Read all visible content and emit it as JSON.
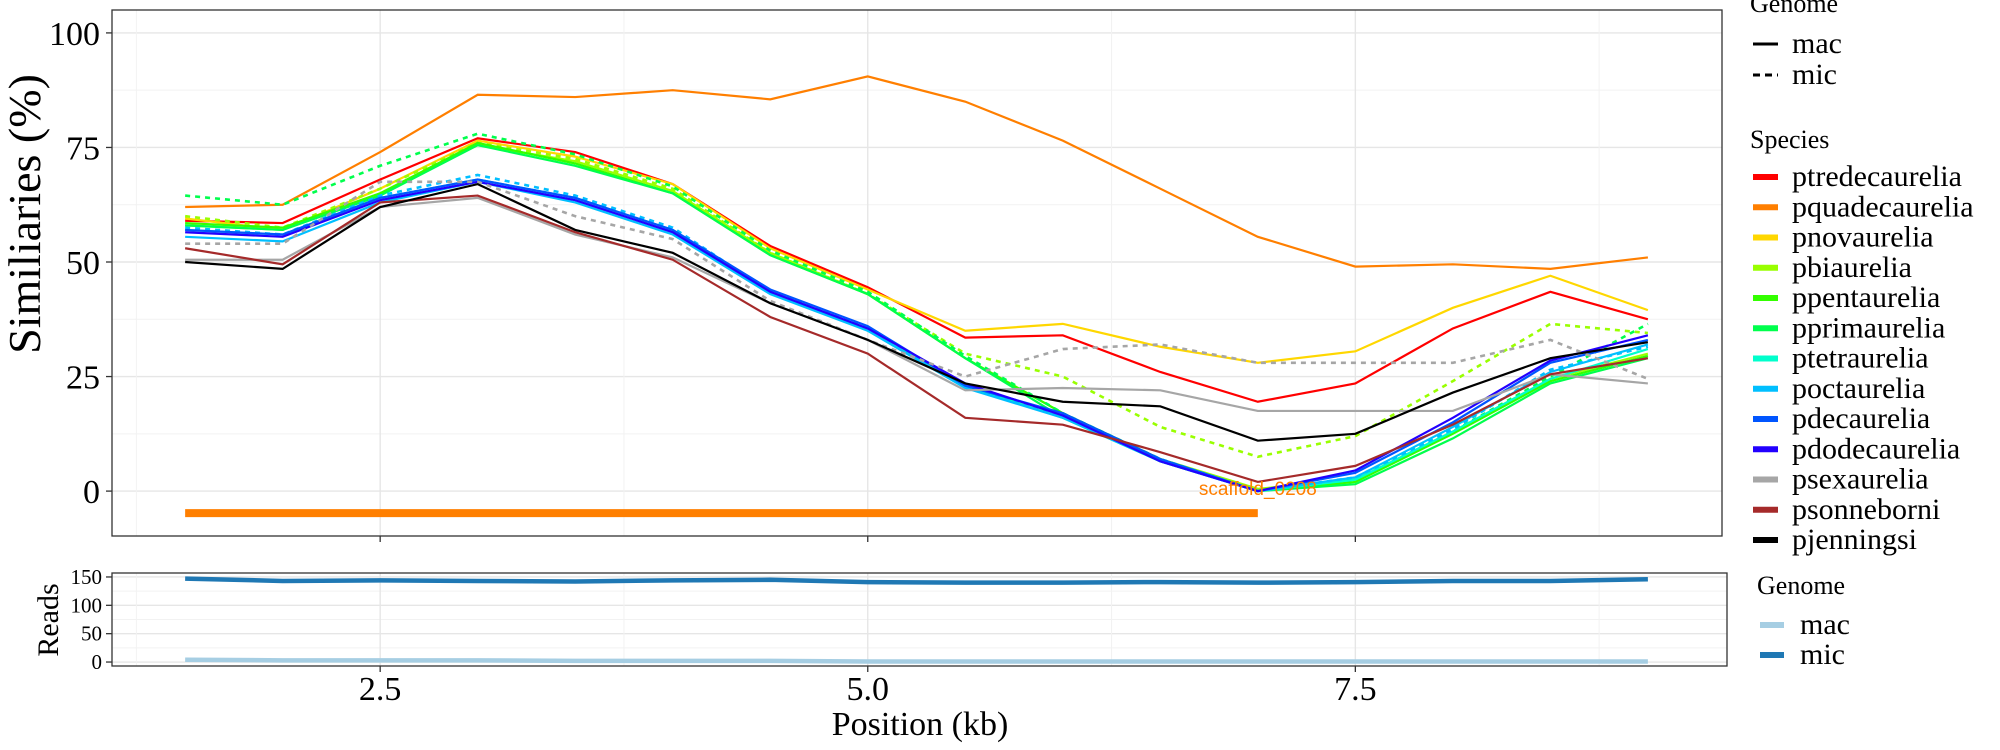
{
  "chart_data": [
    {
      "type": "line",
      "title": "",
      "xlabel": "Position (kb)",
      "ylabel": "Similiaries (%)",
      "xlim": [
        1.125,
        9.38
      ],
      "ylim": [
        -9.8,
        105
      ],
      "grid": true,
      "x_ticks": [
        2.5,
        5.0,
        7.5
      ],
      "x_tick_labels": [
        "2.5",
        "5.0",
        "7.5"
      ],
      "y_ticks": [
        0,
        25,
        50,
        75,
        100
      ],
      "y_tick_labels": [
        "0",
        "25",
        "50",
        "75",
        "100"
      ],
      "x": [
        1.5,
        2.0,
        2.5,
        3.0,
        3.5,
        4.0,
        4.5,
        5.0,
        5.5,
        6.0,
        6.5,
        7.0,
        7.5,
        8.0,
        8.5,
        9.0
      ],
      "legend_position": "right",
      "genome_legend": {
        "title": "Genome",
        "items": [
          {
            "label": "mac",
            "dash": "solid"
          },
          {
            "label": "mic",
            "dash": "dashed"
          }
        ]
      },
      "species_legend_title": "Species",
      "species": [
        {
          "name": "ptredecaurelia",
          "color": "#FF0000"
        },
        {
          "name": "pquadecaurelia",
          "color": "#FF7F00"
        },
        {
          "name": "pnovaurelia",
          "color": "#FFD700"
        },
        {
          "name": "pbiaurelia",
          "color": "#99FF00"
        },
        {
          "name": "ppentaurelia",
          "color": "#33FF00"
        },
        {
          "name": "pprimaurelia",
          "color": "#00FF4D"
        },
        {
          "name": "ptetraurelia",
          "color": "#00FFCC"
        },
        {
          "name": "poctaurelia",
          "color": "#00BFFF"
        },
        {
          "name": "pdecaurelia",
          "color": "#0055FF"
        },
        {
          "name": "pdodecaurelia",
          "color": "#2200FF"
        },
        {
          "name": "psexaurelia",
          "color": "#A6A6A6"
        },
        {
          "name": "psonneborni",
          "color": "#A52A2A"
        },
        {
          "name": "pjenningsi",
          "color": "#000000"
        }
      ],
      "series": [
        {
          "species": "ptredecaurelia",
          "genome": "mac",
          "values": [
            59,
            58.5,
            68,
            77,
            74,
            67,
            53.5,
            44.5,
            33.5,
            34,
            26,
            19.5,
            23.5,
            35.5,
            43.5,
            37.5
          ]
        },
        {
          "species": "pquadecaurelia",
          "genome": "mac",
          "values": [
            62,
            62.5,
            74,
            86.5,
            86,
            87.5,
            85.5,
            90.5,
            85,
            76.5,
            66,
            55.5,
            49,
            49.5,
            48.5,
            51
          ]
        },
        {
          "species": "pnovaurelia",
          "genome": "mac",
          "values": [
            59.5,
            57,
            66,
            76.5,
            73,
            67,
            53,
            44,
            35,
            36.5,
            31.5,
            28,
            30.5,
            40,
            47,
            39.5
          ]
        },
        {
          "species": "pbiaurelia",
          "genome": "mac",
          "values": [
            58,
            57,
            65,
            75.5,
            72,
            65.5,
            52,
            43,
            29,
            17,
            7,
            0.5,
            2.5,
            13,
            24.5,
            30
          ]
        },
        {
          "species": "pbiaurelia",
          "genome": "mic",
          "values": [
            60,
            57.5,
            66,
            76,
            72.5,
            66,
            52,
            43,
            30,
            25,
            14,
            7.5,
            12,
            24,
            36.5,
            34.5
          ]
        },
        {
          "species": "ppentaurelia",
          "genome": "mac",
          "values": [
            58.5,
            57.5,
            65,
            76,
            71.5,
            65,
            51.5,
            43,
            29,
            17,
            7,
            0,
            2,
            12.5,
            24,
            29.5
          ]
        },
        {
          "species": "pprimaurelia",
          "genome": "mac",
          "values": [
            58,
            57,
            64.5,
            75.5,
            71,
            65,
            51.5,
            43,
            29,
            16,
            6.5,
            0,
            1.5,
            11.5,
            23.5,
            29
          ]
        },
        {
          "species": "pprimaurelia",
          "genome": "mic",
          "values": [
            64.5,
            62.5,
            71,
            78,
            73.5,
            66.5,
            52.5,
            43.5,
            29.5,
            17,
            7,
            0,
            2.5,
            13,
            25,
            36.5
          ]
        },
        {
          "species": "ptetraurelia",
          "genome": "mac",
          "values": [
            57,
            56,
            64,
            68,
            64,
            57,
            43.5,
            35,
            23,
            16,
            6.5,
            0,
            2.5,
            13,
            24.5,
            31
          ]
        },
        {
          "species": "poctaurelia",
          "genome": "mac",
          "values": [
            55.5,
            54.5,
            63,
            67.5,
            63,
            56,
            43,
            35,
            22.5,
            16,
            6.5,
            0,
            3,
            14,
            26,
            32
          ]
        },
        {
          "species": "poctaurelia",
          "genome": "mic",
          "values": [
            57.5,
            56,
            64.5,
            69,
            64.5,
            57.5,
            43.5,
            35.5,
            23,
            16.5,
            7,
            0,
            3,
            13.5,
            26.5,
            31.5
          ]
        },
        {
          "species": "pdecaurelia",
          "genome": "mac",
          "values": [
            57,
            56,
            64,
            68,
            64,
            57,
            44,
            36,
            23,
            17,
            7,
            0,
            4,
            15,
            28,
            33
          ]
        },
        {
          "species": "pdodecaurelia",
          "genome": "mac",
          "values": [
            56.5,
            55.5,
            63.5,
            67.5,
            63.5,
            56.5,
            43.5,
            35.5,
            23.5,
            16.5,
            6.5,
            0,
            4.5,
            16,
            28.5,
            34
          ]
        },
        {
          "species": "psexaurelia",
          "genome": "mac",
          "values": [
            50.5,
            50.5,
            62,
            64,
            56,
            51,
            41,
            33,
            22,
            22.5,
            22,
            17.5,
            17.5,
            17.5,
            25.5,
            23.5
          ]
        },
        {
          "species": "psexaurelia",
          "genome": "mic",
          "values": [
            54,
            54,
            67.5,
            67.5,
            60,
            55,
            41.5,
            33,
            25,
            31,
            32,
            28,
            28,
            28,
            33,
            24.5
          ]
        },
        {
          "species": "psonneborni",
          "genome": "mac",
          "values": [
            53,
            49.5,
            63,
            64.5,
            56.5,
            50.5,
            38,
            30,
            16,
            14.5,
            8.5,
            2,
            5.5,
            14.5,
            25.5,
            29
          ]
        },
        {
          "species": "pjenningsi",
          "genome": "mac",
          "values": [
            50,
            48.5,
            62,
            67,
            57,
            52,
            41,
            33,
            23.5,
            19.5,
            18.5,
            11,
            12.5,
            21.5,
            29,
            32.5
          ]
        }
      ],
      "annotation": {
        "label": "scaffold_0208",
        "color": "#FF7F00",
        "x_start": 1.5,
        "x_end": 7.0,
        "y": -4.8,
        "label_x": 7.0,
        "label_y": 0
      }
    },
    {
      "type": "line",
      "xlabel": "Position (kb)",
      "ylabel": "Reads",
      "xlim": [
        1.125,
        9.38
      ],
      "ylim": [
        -7,
        157
      ],
      "grid": true,
      "y_ticks": [
        0,
        50,
        100,
        150
      ],
      "y_tick_labels": [
        "0",
        "50",
        "100",
        "150"
      ],
      "x": [
        1.5,
        2.0,
        2.5,
        3.0,
        3.5,
        4.0,
        4.5,
        5.0,
        5.5,
        6.0,
        6.5,
        7.0,
        7.5,
        8.0,
        8.5,
        9.0
      ],
      "legend_position": "right",
      "legend_title": "Genome",
      "series": [
        {
          "name": "mac",
          "color": "#A6CEE3",
          "values": [
            4,
            3,
            3,
            3,
            2,
            2,
            2,
            1,
            1,
            1,
            1,
            1,
            1,
            1,
            1,
            1
          ]
        },
        {
          "name": "mic",
          "color": "#1F78B4",
          "values": [
            147,
            143,
            144,
            143,
            142,
            144,
            145,
            141,
            140,
            140,
            141,
            140,
            141,
            143,
            143,
            146
          ]
        }
      ]
    }
  ]
}
